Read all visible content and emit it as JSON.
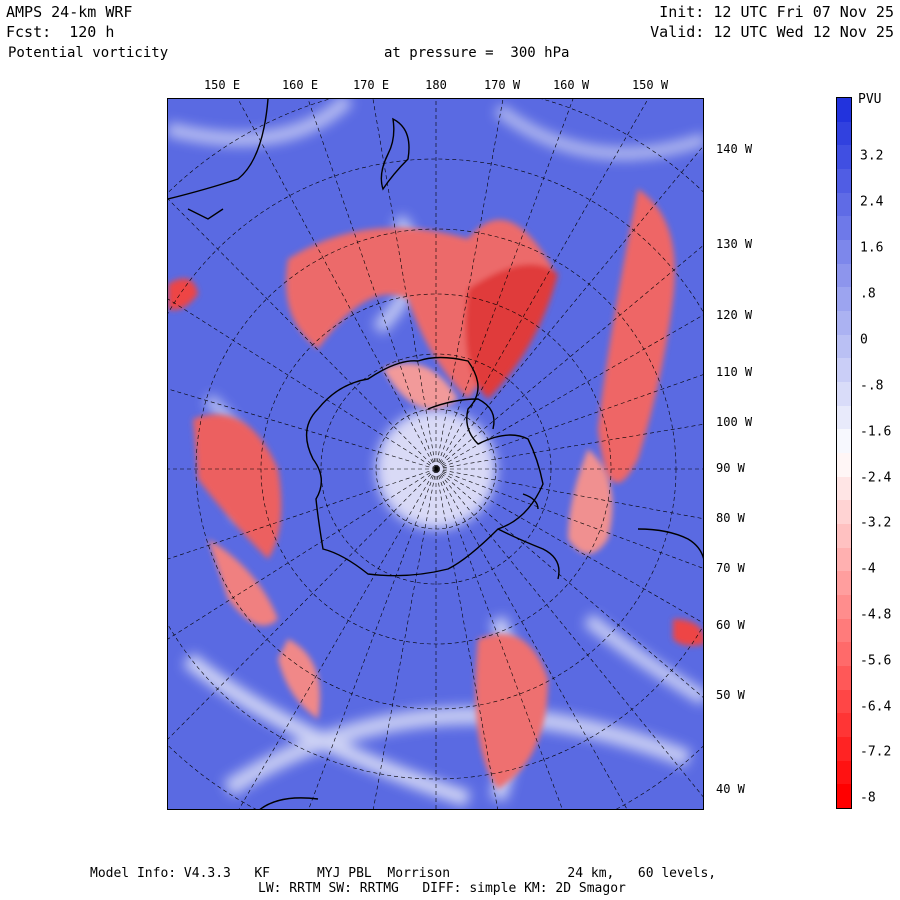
{
  "header": {
    "model": "AMPS 24-km WRF",
    "forecast": "Fcst:  120 h",
    "field": "Potential vorticity",
    "pressure": "at pressure =  300 hPa",
    "init": "Init: 12 UTC Fri 07 Nov 25",
    "valid": "Valid: 12 UTC Wed 12 Nov 25"
  },
  "map": {
    "top_longitudes": [
      "150 E",
      "160 E",
      "170 E",
      "180",
      "170 W",
      "160 W",
      "150 W"
    ],
    "right_longitudes": [
      "140 W",
      "130 W",
      "120 W",
      "110 W",
      "100 W",
      "90 W",
      "80 W",
      "70 W",
      "60 W",
      "50 W",
      "40 W"
    ]
  },
  "colorbar": {
    "unit": "PVU",
    "labels": [
      "3.2",
      "2.4",
      "1.6",
      ".8",
      "0",
      "-.8",
      "-1.6",
      "-2.4",
      "-3.2",
      "-4",
      "-4.8",
      "-5.6",
      "-6.4",
      "-7.2",
      "-8"
    ],
    "colors": {
      "positive_max": "#2233dd",
      "near_zero": "#ffffff",
      "negative_max": "#ff0000",
      "background_field": "#5566e0",
      "negative_field": "#ee5555"
    }
  },
  "footer": {
    "line1": "Model Info: V4.3.3   KF      MYJ PBL  Morrison               24 km,   60 levels,",
    "line2": "LW: RRTM SW: RRTMG   DIFF: simple KM: 2D Smagor"
  }
}
